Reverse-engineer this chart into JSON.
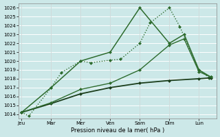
{
  "title": "",
  "xlabel": "Pression niveau de la mer( hPa )",
  "ylabel": "",
  "background_color": "#cce8e8",
  "grid_color": "#ffffff",
  "ylim": [
    1013.5,
    1026.5
  ],
  "yticks": [
    1014,
    1015,
    1016,
    1017,
    1018,
    1019,
    1020,
    1021,
    1022,
    1023,
    1024,
    1025,
    1026
  ],
  "x_labels": [
    "Jeu",
    "Mar",
    "Mer",
    "Ven",
    "Sam",
    "Dim",
    "Lun"
  ],
  "x_positions": [
    0,
    1,
    2,
    3,
    4,
    5,
    6
  ],
  "xlim": [
    -0.1,
    6.6
  ],
  "series": [
    {
      "x": [
        0,
        0.25,
        1,
        1.35,
        2,
        2.35,
        3,
        3.35,
        4,
        4.35,
        5,
        5.35,
        6,
        6.35
      ],
      "y": [
        1014.2,
        1013.8,
        1017.0,
        1018.7,
        1020.0,
        1019.8,
        1020.1,
        1020.2,
        1022.0,
        1024.3,
        1026.0,
        1023.9,
        1019.0,
        1018.1
      ],
      "color": "#2d6b2d",
      "lw": 1.0,
      "marker": "D",
      "ms": 2.0,
      "ls": ":"
    },
    {
      "x": [
        0,
        1,
        2,
        3,
        4,
        5,
        5.5,
        6,
        6.4
      ],
      "y": [
        1014.2,
        1017.0,
        1020.0,
        1021.0,
        1026.0,
        1022.0,
        1023.0,
        1019.0,
        1018.2
      ],
      "color": "#2d6b2d",
      "lw": 1.1,
      "marker": "D",
      "ms": 2.0,
      "ls": "-"
    },
    {
      "x": [
        0,
        1,
        2,
        3,
        4,
        5,
        6,
        6.4
      ],
      "y": [
        1014.2,
        1015.2,
        1016.3,
        1017.0,
        1017.5,
        1017.8,
        1018.0,
        1018.1
      ],
      "color": "#1a3d1a",
      "lw": 1.3,
      "marker": "D",
      "ms": 2.0,
      "ls": "-"
    },
    {
      "x": [
        0,
        1,
        2,
        3,
        4,
        5,
        5.5,
        6,
        6.4
      ],
      "y": [
        1014.2,
        1015.3,
        1016.8,
        1017.5,
        1019.0,
        1021.8,
        1022.5,
        1018.8,
        1018.2
      ],
      "color": "#2d6b2d",
      "lw": 1.0,
      "marker": "D",
      "ms": 2.0,
      "ls": "-"
    }
  ]
}
